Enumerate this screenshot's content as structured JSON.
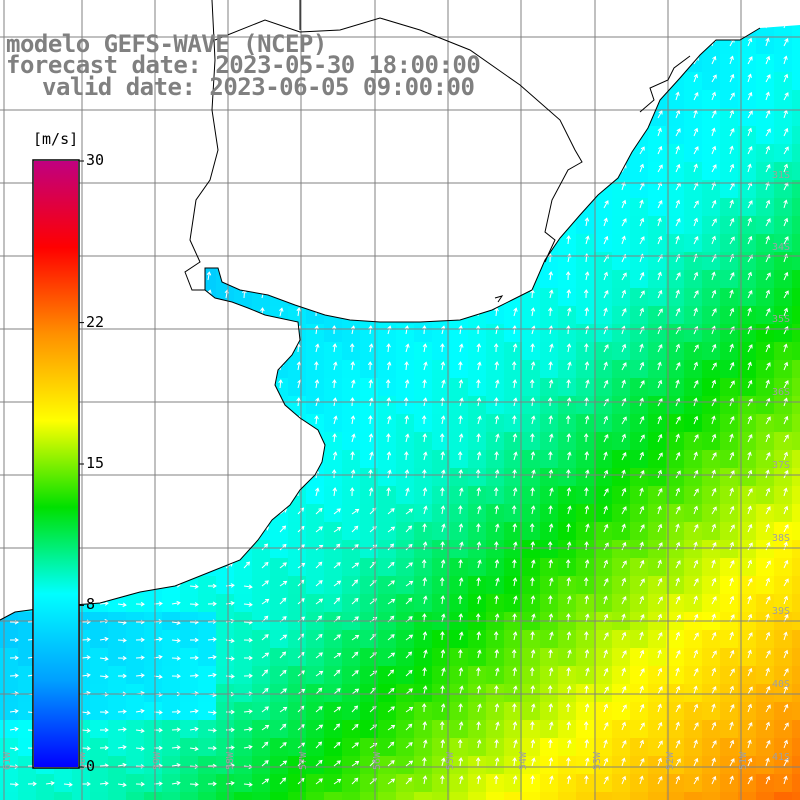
{
  "header": {
    "line1": "modelo GEFS-WAVE (NCEP)",
    "line2": "forecast date: 2023-05-30 18:00:00",
    "line3": "valid date: 2023-06-05 09:00:00"
  },
  "colorbar": {
    "unit": "[m/s]",
    "ticks": [
      {
        "label": "30",
        "value": 30
      },
      {
        "label": "22",
        "value": 22
      },
      {
        "label": "15",
        "value": 15
      },
      {
        "label": "8",
        "value": 8
      },
      {
        "label": "0",
        "value": 0
      }
    ],
    "min": 0,
    "max": 30,
    "gradient_stops": [
      "#0000ff",
      "#00a0ff",
      "#00ffff",
      "#00e000",
      "#ffff00",
      "#ff9000",
      "#ff0000",
      "#c00080"
    ]
  },
  "map_labels": {
    "lat_labels": [
      "31S",
      "34S",
      "35S",
      "36S",
      "37S",
      "38S",
      "39S",
      "40S",
      "41S"
    ],
    "lon_labels": [
      "61W",
      "60W",
      "59W",
      "58W",
      "57W",
      "56W",
      "55W",
      "54W",
      "53W",
      "52W",
      "51W"
    ]
  },
  "colors": {
    "land": "#ffffff",
    "grid": "#808080",
    "coast": "#000000",
    "arrow": "#ffffff",
    "title": "#808080"
  }
}
